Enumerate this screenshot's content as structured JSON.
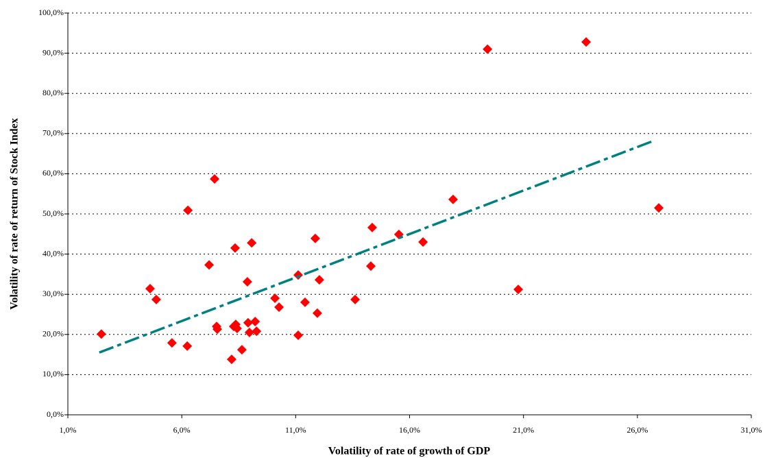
{
  "chart_data": {
    "type": "scatter",
    "x_label": "Volatility of rate of growth of GDP",
    "y_label": "Volatility of rate of return of Stock Index",
    "xlim": [
      1,
      31
    ],
    "ylim": [
      0,
      100
    ],
    "xticks": [
      {
        "value": 1,
        "label": "1,0%"
      },
      {
        "value": 6,
        "label": "6,0%"
      },
      {
        "value": 11,
        "label": "11,0%"
      },
      {
        "value": 16,
        "label": "16,0%"
      },
      {
        "value": 21,
        "label": "21,0%"
      },
      {
        "value": 26,
        "label": "26,0%"
      },
      {
        "value": 31,
        "label": "31,0%"
      }
    ],
    "yticks": [
      {
        "value": 0,
        "label": "0,0%"
      },
      {
        "value": 10,
        "label": "10,0%"
      },
      {
        "value": 20,
        "label": "20,0%"
      },
      {
        "value": 30,
        "label": "30,0%"
      },
      {
        "value": 40,
        "label": "40,0%"
      },
      {
        "value": 50,
        "label": "50,0%"
      },
      {
        "value": 60,
        "label": "60,0%"
      },
      {
        "value": 70,
        "label": "70,0%"
      },
      {
        "value": 80,
        "label": "80,0%"
      },
      {
        "value": 90,
        "label": "90,0%"
      },
      {
        "value": 100,
        "label": "100,0%"
      }
    ],
    "grid": true,
    "series": [
      {
        "color": "#ff0000",
        "x": [
          2.47,
          4.61,
          4.88,
          5.57,
          6.24,
          6.27,
          7.2,
          7.44,
          7.53,
          7.56,
          8.19,
          8.28,
          8.37,
          8.34,
          8.43,
          8.64,
          8.88,
          8.91,
          8.97,
          9.07,
          9.22,
          9.28,
          10.09,
          10.27,
          11.11,
          11.11,
          11.41,
          11.86,
          11.95,
          12.04,
          13.61,
          14.3,
          14.36,
          15.53,
          16.59,
          17.91,
          19.42,
          20.77,
          23.75,
          26.94
        ],
        "values": [
          20.1,
          31.4,
          28.7,
          17.9,
          17.1,
          50.9,
          37.3,
          58.7,
          22.0,
          21.3,
          13.8,
          22.0,
          22.5,
          41.5,
          21.5,
          16.2,
          33.1,
          22.9,
          20.5,
          42.8,
          23.2,
          20.8,
          29.0,
          26.8,
          19.8,
          34.8,
          28.0,
          43.9,
          25.3,
          33.6,
          28.7,
          37.0,
          46.6,
          44.9,
          43.0,
          53.6,
          91.0,
          31.2,
          92.8,
          51.5
        ]
      }
    ],
    "trendline": {
      "color": "#008080",
      "x": [
        2.38,
        26.76
      ],
      "y": [
        15.5,
        68.3
      ]
    }
  }
}
